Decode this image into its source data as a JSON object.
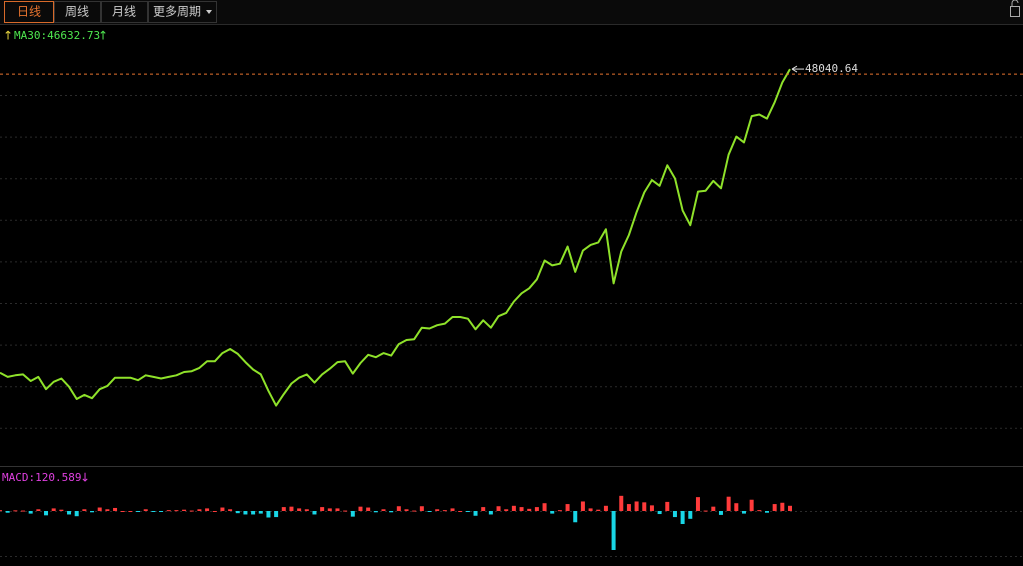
{
  "tabs": [
    "日线",
    "周线",
    "月线",
    "更多周期"
  ],
  "chart_data": [
    {
      "type": "line",
      "ma_label": [
        "↑",
        "MA30:46632.73",
        "↑"
      ],
      "color": "#8fe22a",
      "ylim": [
        0,
        50000
      ],
      "values": [
        11000,
        10500,
        10700,
        10800,
        10000,
        10500,
        9000,
        9900,
        10300,
        9300,
        7800,
        8300,
        7900,
        9000,
        9400,
        10400,
        10400,
        10400,
        10100,
        10700,
        10500,
        10300,
        10500,
        10700,
        11100,
        11200,
        11600,
        12400,
        12400,
        13400,
        13900,
        13300,
        12300,
        11400,
        10800,
        8800,
        7000,
        8400,
        9700,
        10400,
        10800,
        9800,
        10800,
        11500,
        12300,
        12400,
        10900,
        12200,
        13200,
        12900,
        13400,
        13100,
        14500,
        15000,
        15100,
        16500,
        16400,
        16800,
        17000,
        17800,
        17800,
        17600,
        16300,
        17400,
        16500,
        17900,
        18300,
        19700,
        20700,
        21300,
        22400,
        24700,
        24100,
        24300,
        26400,
        23300,
        25900,
        26600,
        26900,
        28500,
        21900,
        25800,
        27800,
        30600,
        33000,
        34500,
        33800,
        36300,
        34700,
        30800,
        29000,
        33100,
        33200,
        34400,
        33500,
        37600,
        39800,
        39100,
        42300,
        42500,
        42000,
        44000,
        46400,
        48040.64
      ]
    },
    {
      "type": "bar",
      "macd_label": [
        "MACD:120.589",
        "↓"
      ],
      "up_color": "#ff3b3b",
      "down_color": "#19d6e6",
      "ylim": [
        -1200,
        1200
      ],
      "values": [
        20,
        -40,
        15,
        10,
        -60,
        40,
        -100,
        60,
        30,
        -80,
        -120,
        40,
        -30,
        80,
        40,
        70,
        0,
        0,
        -20,
        40,
        -20,
        -20,
        20,
        20,
        30,
        10,
        40,
        60,
        0,
        80,
        40,
        -50,
        -80,
        -80,
        -60,
        -150,
        -140,
        90,
        100,
        60,
        40,
        -80,
        90,
        60,
        60,
        10,
        -130,
        100,
        80,
        -30,
        40,
        -30,
        110,
        40,
        10,
        110,
        -10,
        40,
        20,
        60,
        0,
        -20,
        -110,
        90,
        -80,
        110,
        40,
        120,
        90,
        50,
        90,
        180,
        -60,
        20,
        160,
        -260,
        220,
        60,
        30,
        120,
        -900,
        350,
        160,
        220,
        200,
        130,
        -70,
        210,
        -140,
        -300,
        -180,
        320,
        10,
        100,
        -90,
        330,
        180,
        -60,
        260,
        20,
        -40,
        160,
        190,
        120
      ]
    }
  ]
}
